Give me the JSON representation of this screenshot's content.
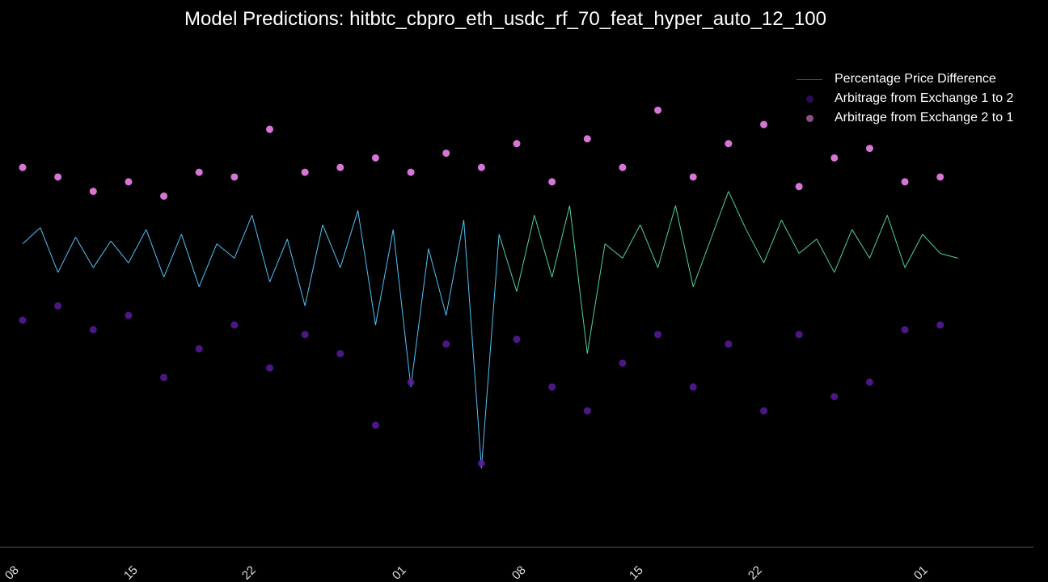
{
  "chart_data": {
    "type": "line",
    "title": "Model Predictions: hitbtc_cbpro_eth_usdc_rf_70_feat_hyper_auto_12_100",
    "xlabel": "",
    "ylabel": "",
    "x_tick_labels": [
      "08",
      "15",
      "22",
      "01",
      "08",
      "15",
      "22",
      "01"
    ],
    "grid": false,
    "legend_position": "top-right",
    "legend": [
      "Percentage Price Difference",
      "Arbitrage from Exchange 1 to 2",
      "Arbitrage from Exchange 2 to 1"
    ],
    "series": [
      {
        "name": "Percentage Price Difference",
        "kind": "line",
        "colors": [
          "#4fc3f7",
          "#4fd1a5"
        ],
        "x": [
          0,
          1,
          2,
          3,
          4,
          5,
          6,
          7,
          8,
          9,
          10,
          11,
          12,
          13,
          14,
          15,
          16,
          17,
          18,
          19,
          20,
          21,
          22,
          23,
          24,
          25,
          26,
          27,
          28,
          29,
          30,
          31,
          32,
          33,
          34,
          35,
          36,
          37,
          38,
          39,
          40,
          41,
          42,
          43,
          44,
          45,
          46,
          47,
          48,
          49,
          50,
          51,
          52,
          53
        ],
        "values": [
          0.55,
          0.72,
          0.25,
          0.62,
          0.3,
          0.58,
          0.35,
          0.7,
          0.2,
          0.65,
          0.1,
          0.55,
          0.4,
          0.85,
          0.15,
          0.6,
          -0.1,
          0.75,
          0.3,
          0.9,
          -0.3,
          0.7,
          -0.95,
          0.5,
          -0.2,
          0.8,
          -1.8,
          0.65,
          0.05,
          0.85,
          0.2,
          0.95,
          -0.6,
          0.55,
          0.4,
          0.75,
          0.3,
          0.95,
          0.1,
          0.6,
          1.1,
          0.7,
          0.35,
          0.8,
          0.45,
          0.6,
          0.25,
          0.7,
          0.4,
          0.85,
          0.3,
          0.65,
          0.45,
          0.4
        ]
      },
      {
        "name": "Arbitrage from Exchange 1 to 2",
        "kind": "scatter",
        "color": "#5b1a9e",
        "x": [
          0,
          2,
          4,
          6,
          8,
          10,
          12,
          14,
          16,
          18,
          20,
          22,
          24,
          26,
          28,
          30,
          32,
          34,
          36,
          38,
          40,
          42,
          44,
          46,
          48,
          50,
          52
        ],
        "values": [
          -0.25,
          -0.1,
          -0.35,
          -0.2,
          -0.85,
          -0.55,
          -0.3,
          -0.75,
          -0.4,
          -0.6,
          -1.35,
          -0.9,
          -0.5,
          -1.75,
          -0.45,
          -0.95,
          -1.2,
          -0.7,
          -0.4,
          -0.95,
          -0.5,
          -1.2,
          -0.4,
          -1.05,
          -0.9,
          -0.35,
          -0.3
        ]
      },
      {
        "name": "Arbitrage from Exchange 2 to 1",
        "kind": "scatter",
        "color": "#ee82ee",
        "x": [
          0,
          2,
          4,
          6,
          8,
          10,
          12,
          14,
          16,
          18,
          20,
          22,
          24,
          26,
          28,
          30,
          32,
          34,
          36,
          38,
          40,
          42,
          44,
          46,
          48,
          50,
          52
        ],
        "values": [
          1.35,
          1.25,
          1.1,
          1.2,
          1.05,
          1.3,
          1.25,
          1.75,
          1.3,
          1.35,
          1.45,
          1.3,
          1.5,
          1.35,
          1.6,
          1.2,
          1.65,
          1.35,
          1.95,
          1.25,
          1.6,
          1.8,
          1.15,
          1.45,
          1.55,
          1.2,
          1.25
        ]
      }
    ],
    "ylim": [
      -2.4,
      2.3
    ],
    "xlim": [
      0,
      56
    ]
  }
}
